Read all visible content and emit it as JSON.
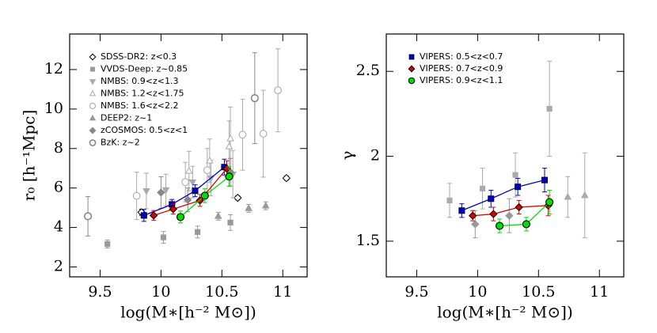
{
  "chart_data": [
    {
      "type": "scatter",
      "xlabel": "log(M∗[h⁻² M⊙])",
      "ylabel": "r₀ [h⁻¹Mpc]",
      "xlim": [
        9.25,
        11.2
      ],
      "ylim": [
        1.5,
        13.8
      ],
      "xticks": [
        9.5,
        10,
        10.5,
        11
      ],
      "yticks": [
        2,
        4,
        6,
        8,
        10,
        12
      ],
      "series": [
        {
          "name": "SDSS-DR2: z<0.3",
          "marker": "diamond-open",
          "color": "#000000",
          "x": [
            9.84,
            10.63,
            11.03
          ],
          "values": [
            4.77,
            5.5,
            6.5
          ],
          "errors": [
            0.15,
            0.1,
            0.1
          ]
        },
        {
          "name": "VVDS-Deep: z~0.85",
          "marker": "square",
          "color": "#999999",
          "x": [
            9.56,
            10.02,
            10.3,
            10.57
          ],
          "values": [
            3.16,
            3.5,
            3.77,
            4.25
          ],
          "errors": [
            0.2,
            0.3,
            0.3,
            0.4
          ]
        },
        {
          "name": "NMBS: 0.9<z<1.3",
          "marker": "tri-down",
          "color": "#aaaaaa",
          "x": [
            9.88,
            10.04,
            10.26,
            10.41,
            10.59
          ],
          "values": [
            5.85,
            5.9,
            6.3,
            6.5,
            6.7
          ],
          "errors": [
            0.9,
            0.8,
            0.8,
            0.9,
            1.2
          ]
        },
        {
          "name": "NMBS: 1.2<z<1.75",
          "marker": "tri-up-open",
          "color": "#aaaaaa",
          "x": [
            10.23,
            10.4,
            10.56,
            10.57
          ],
          "values": [
            6.86,
            7.38,
            8.1,
            8.5
          ],
          "errors": [
            1.0,
            1.1,
            1.3,
            1.6
          ]
        },
        {
          "name": "NMBS: 1.6<z<2.2",
          "marker": "circle-open",
          "color": "#aaaaaa",
          "x": [
            9.8,
            10.2,
            10.38,
            10.67,
            10.84,
            10.96
          ],
          "values": [
            5.6,
            6.3,
            6.9,
            8.7,
            8.75,
            10.95
          ],
          "errors": [
            1.2,
            1.0,
            1.1,
            1.8,
            2.2,
            2.1
          ]
        },
        {
          "name": "DEEP2: z~1",
          "marker": "tri-up",
          "color": "#999999",
          "x": [
            10.47,
            10.72,
            10.86
          ],
          "values": [
            4.57,
            4.97,
            5.1
          ],
          "errors": [
            0.2,
            0.2,
            0.2
          ]
        },
        {
          "name": "zCOSMOS: 0.5<z<1",
          "marker": "diamond",
          "color": "#888888",
          "x": [
            10.0,
            10.22,
            10.57
          ],
          "values": [
            5.77,
            5.4,
            6.8
          ],
          "errors": [
            0.8,
            0.6,
            0.7
          ]
        },
        {
          "name": "BzK: z~2",
          "marker": "circle-open-dark",
          "color": "#888888",
          "x": [
            9.4,
            10.77
          ],
          "values": [
            4.57,
            10.55
          ],
          "errors": [
            1.0,
            2.3
          ]
        },
        {
          "marker": "square",
          "color": "#0000cc",
          "connect": true,
          "x": [
            9.86,
            10.09,
            10.28,
            10.52
          ],
          "values": [
            4.61,
            5.17,
            5.86,
            7.06
          ],
          "errors": [
            0.3,
            0.25,
            0.3,
            0.4
          ]
        },
        {
          "marker": "diamond",
          "color": "#dd0000",
          "connect": true,
          "x": [
            9.94,
            10.1,
            10.32,
            10.54
          ],
          "values": [
            4.61,
            4.93,
            5.37,
            6.98
          ],
          "errors": [
            0.25,
            0.25,
            0.3,
            0.4
          ]
        },
        {
          "marker": "circle",
          "color": "#00dd00",
          "connect": true,
          "x": [
            10.16,
            10.36,
            10.56
          ],
          "values": [
            4.53,
            5.61,
            6.58
          ],
          "errors": [
            0.3,
            0.35,
            0.5
          ]
        }
      ]
    },
    {
      "type": "scatter",
      "ylabel": "γ",
      "xlabel": "log(M∗[h⁻² M⊙])",
      "xlim": [
        9.25,
        11.2
      ],
      "ylim": [
        1.29,
        2.72
      ],
      "xticks": [
        9.5,
        10,
        10.5,
        11
      ],
      "yticks": [
        1.5,
        2,
        2.5
      ],
      "series": [
        {
          "marker": "square",
          "color": "#aaaaaa",
          "x": [
            9.77,
            10.04,
            10.31,
            10.59
          ],
          "values": [
            1.74,
            1.81,
            1.89,
            2.28
          ],
          "errors": [
            0.1,
            0.12,
            0.13,
            0.28
          ]
        },
        {
          "marker": "tri-up",
          "color": "#aaaaaa",
          "x": [
            10.74,
            10.88
          ],
          "values": [
            1.76,
            1.77
          ],
          "errors": [
            0.12,
            0.25
          ]
        },
        {
          "marker": "diamond",
          "color": "#999999",
          "x": [
            9.98,
            10.26
          ],
          "values": [
            1.6,
            1.65
          ],
          "errors": [
            0.08,
            0.1
          ]
        },
        {
          "name": "VIPERS: 0.5<z<0.7",
          "marker": "square",
          "color": "#0000cc",
          "connect": true,
          "x": [
            9.87,
            10.11,
            10.33,
            10.55
          ],
          "values": [
            1.68,
            1.75,
            1.82,
            1.86
          ],
          "errors": [
            0.04,
            0.05,
            0.05,
            0.07
          ]
        },
        {
          "name": "VIPERS: 0.7<z<0.9",
          "marker": "diamond",
          "color": "#dd0000",
          "connect": true,
          "x": [
            9.96,
            10.13,
            10.34,
            10.58
          ],
          "values": [
            1.65,
            1.66,
            1.7,
            1.71
          ],
          "errors": [
            0.03,
            0.04,
            0.04,
            0.06
          ]
        },
        {
          "name": "VIPERS: 0.9<z<1.1",
          "marker": "circle",
          "color": "#00dd00",
          "connect": true,
          "x": [
            10.18,
            10.4,
            10.59
          ],
          "values": [
            1.59,
            1.6,
            1.73
          ],
          "errors": [
            0.04,
            0.04,
            0.07
          ]
        }
      ]
    }
  ]
}
